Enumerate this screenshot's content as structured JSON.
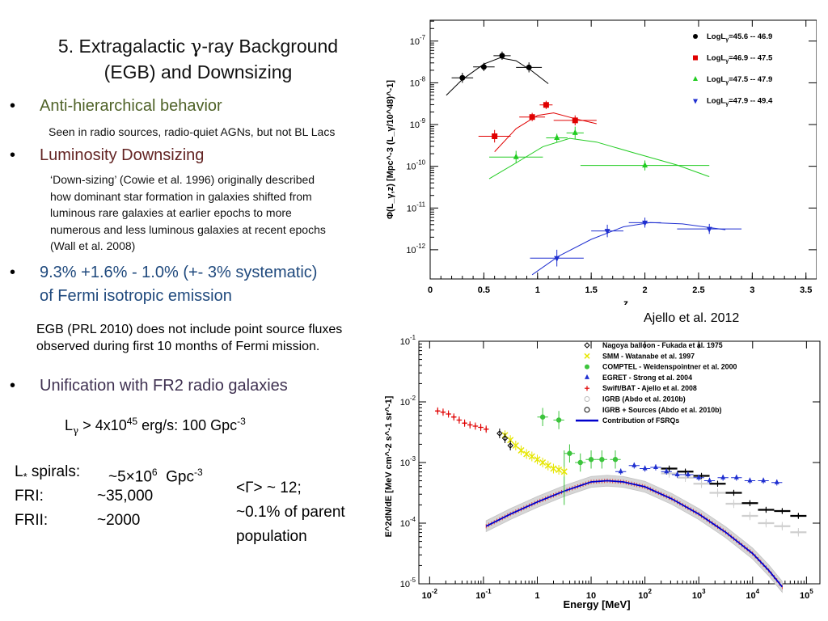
{
  "slide": {
    "title": {
      "line1_pre": "5. Extragalactic ",
      "line1_symbol": "γ",
      "line1_post": "-ray Background",
      "line2": "(EGB) and Downsizing"
    },
    "bullets": [
      {
        "label": "Anti-hierarchical behavior",
        "color": "#4f6228"
      },
      {
        "label": "Luminosity Downsizing",
        "color": "#632423"
      },
      {
        "label_line1": "9.3% +1.6% - 1.0% (+- 3% systematic)",
        "label_line2": "of Fermi isotropic emission",
        "color": "#1f497d"
      },
      {
        "label": "Unification with FR2 radio galaxies",
        "color": "#3f3151"
      }
    ],
    "sub_radio": "Seen in radio sources,  radio-quiet AGNs, but not BL Lacs",
    "sub_downsizing": [
      "‘Down-sizing’ (Cowie et al. 1996) originally described",
      "how dominant star formation in galaxies shifted from",
      "luminous rare galaxies at earlier epochs to more",
      "numerous and less luminous galaxies at recent epochs",
      "(Wall et al. 2008)"
    ],
    "egb_note": [
      "EGB (PRL 2010) does not include point source fluxes",
      "observed during first 10 months of Fermi mission."
    ],
    "lgamma": {
      "pre": "L",
      "sub": "γ",
      "mid": " > 4x10",
      "exp": "45",
      "post": " erg/s: 100 Gpc",
      "exp2": "-3"
    },
    "density_lines": [
      {
        "name": "L",
        "name_sub": "*",
        "name_rest": " spirals:",
        "value": "~5×10",
        "value_exp": "6",
        "unit": "  Gpc",
        "unit_exp": "-3"
      },
      {
        "name": "FRI:",
        "value": "~35,000"
      },
      {
        "name": "FRII:",
        "value": "~2000"
      }
    ],
    "gamma_text": {
      "line1": "<Γ> ~ 12;",
      "line2": "~0.1% of parent",
      "line3": "population"
    },
    "caption_top": "Ajello et al. 2012"
  },
  "chart_data": [
    {
      "type": "scatter",
      "xlabel": "z",
      "ylabel": "Φ(L_γ,z) [Mpc^-3 (L_γ/10^48)^-1]",
      "xlim": [
        0,
        3.6
      ],
      "ylim_log10": [
        -12.7,
        -6.5
      ],
      "y_scale": "log",
      "x_ticks": [
        "0",
        "0.5",
        "1",
        "1.5",
        "2",
        "2.5",
        "3",
        "3.5"
      ],
      "y_ticks": [
        {
          "base": "10",
          "exp": "-12",
          "v": -12
        },
        {
          "base": "10",
          "exp": "-11",
          "v": -11
        },
        {
          "base": "10",
          "exp": "-10",
          "v": -10
        },
        {
          "base": "10",
          "exp": "-9",
          "v": -9
        },
        {
          "base": "10",
          "exp": "-8",
          "v": -8
        },
        {
          "base": "10",
          "exp": "-7",
          "v": -7
        }
      ],
      "legend_position": "top-right",
      "series": [
        {
          "name": "LogL",
          "name_sub": "γ",
          "name_rest": "=45.6 -- 46.9",
          "color": "#000000",
          "marker": "circle",
          "points": [
            [
              0.3,
              -7.88,
              0.1,
              0.12
            ],
            [
              0.5,
              -7.62,
              0.1,
              0.1
            ],
            [
              0.67,
              -7.35,
              0.08,
              0.1
            ],
            [
              0.92,
              -7.63,
              0.12,
              0.12
            ]
          ],
          "curve": [
            [
              0.15,
              -8.3
            ],
            [
              0.3,
              -7.92
            ],
            [
              0.5,
              -7.55
            ],
            [
              0.65,
              -7.4
            ],
            [
              0.8,
              -7.47
            ],
            [
              0.95,
              -7.72
            ],
            [
              1.1,
              -8.02
            ]
          ]
        },
        {
          "name": "LogL",
          "name_sub": "γ",
          "name_rest": "=46.9 -- 47.5",
          "color": "#e00000",
          "marker": "square",
          "points": [
            [
              0.6,
              -9.28,
              0.15,
              0.15
            ],
            [
              0.95,
              -8.82,
              0.12,
              0.1
            ],
            [
              1.08,
              -8.53,
              0.06,
              0.1
            ],
            [
              1.35,
              -8.9,
              0.2,
              0.12
            ]
          ],
          "curve": [
            [
              0.6,
              -9.65
            ],
            [
              0.8,
              -9.1
            ],
            [
              1.0,
              -8.78
            ],
            [
              1.15,
              -8.72
            ],
            [
              1.35,
              -8.86
            ],
            [
              1.55,
              -8.98
            ]
          ]
        },
        {
          "name": "LogL",
          "name_sub": "γ",
          "name_rest": "=47.5 -- 47.9",
          "color": "#22cc22",
          "marker": "triangle-up",
          "points": [
            [
              0.8,
              -9.78,
              0.25,
              0.15
            ],
            [
              1.18,
              -9.32,
              0.1,
              0.1
            ],
            [
              1.35,
              -9.2,
              0.08,
              0.15
            ],
            [
              2.0,
              -9.98,
              0.6,
              0.12
            ]
          ],
          "curve": [
            [
              0.55,
              -10.3
            ],
            [
              0.8,
              -9.92
            ],
            [
              1.05,
              -9.53
            ],
            [
              1.3,
              -9.33
            ],
            [
              1.55,
              -9.42
            ],
            [
              1.9,
              -9.68
            ],
            [
              2.3,
              -9.97
            ],
            [
              2.6,
              -10.25
            ]
          ]
        },
        {
          "name": "LogL",
          "name_sub": "γ",
          "name_rest": "=47.9 -- 49.4",
          "color": "#1f2fd0",
          "marker": "triangle-down",
          "points": [
            [
              1.18,
              -12.2,
              0.25,
              0.2
            ],
            [
              1.65,
              -11.55,
              0.15,
              0.15
            ],
            [
              2.0,
              -11.35,
              0.15,
              0.12
            ],
            [
              2.6,
              -11.5,
              0.3,
              0.12
            ]
          ],
          "curve": [
            [
              0.95,
              -12.6
            ],
            [
              1.2,
              -12.15
            ],
            [
              1.5,
              -11.75
            ],
            [
              1.8,
              -11.45
            ],
            [
              2.05,
              -11.35
            ],
            [
              2.35,
              -11.38
            ],
            [
              2.75,
              -11.52
            ]
          ]
        }
      ]
    },
    {
      "type": "scatter",
      "xlabel": "Energy [MeV]",
      "ylabel": "E^2dN/dE [MeV cm^-2 s^-1 sr^-1]",
      "x_scale": "log",
      "y_scale": "log",
      "xlim_log10": [
        -2.2,
        5.25
      ],
      "ylim_log10": [
        -5,
        -1
      ],
      "x_ticks": [
        {
          "base": "10",
          "exp": "-2",
          "v": -2
        },
        {
          "base": "10",
          "exp": "-1",
          "v": -1
        },
        {
          "base": "1",
          "exp": "",
          "v": 0
        },
        {
          "base": "10",
          "exp": "",
          "v": 1
        },
        {
          "base": "10",
          "exp": "2",
          "v": 2
        },
        {
          "base": "10",
          "exp": "3",
          "v": 3
        },
        {
          "base": "10",
          "exp": "4",
          "v": 4
        },
        {
          "base": "10",
          "exp": "5",
          "v": 5
        }
      ],
      "y_ticks": [
        {
          "base": "10",
          "exp": "-5",
          "v": -5
        },
        {
          "base": "10",
          "exp": "-4",
          "v": -4
        },
        {
          "base": "10",
          "exp": "-3",
          "v": -3
        },
        {
          "base": "10",
          "exp": "-2",
          "v": -2
        },
        {
          "base": "10",
          "exp": "-1",
          "v": -1
        }
      ],
      "legend_position": "top-right",
      "legend": [
        {
          "label": "Nagoya balloon - Fukada et al. 1975",
          "marker": "diamond-open",
          "color": "#000000"
        },
        {
          "label": "SMM - Watanabe et al. 1997",
          "marker": "cross",
          "color": "#e6e600"
        },
        {
          "label": "COMPTEL - Weidenspointner et al. 2000",
          "marker": "circle",
          "color": "#3cc43c"
        },
        {
          "label": "EGRET - Strong et al. 2004",
          "marker": "triangle-up",
          "color": "#1f2fd0"
        },
        {
          "label": "Swift/BAT - Ajello et al. 2008",
          "marker": "plus",
          "color": "#e00000"
        },
        {
          "label": "IGRB (Abdo et al. 2010b)",
          "marker": "circle-open",
          "color": "#bbbbbb"
        },
        {
          "label": "IGRB + Sources (Abdo et al. 2010b)",
          "marker": "circle-open",
          "color": "#000000"
        },
        {
          "label": "Contribution of FSRQs",
          "marker": "line",
          "color": "#0000cc"
        }
      ],
      "swift_bat": [
        [
          -1.85,
          -2.15
        ],
        [
          -1.75,
          -2.17
        ],
        [
          -1.65,
          -2.2
        ],
        [
          -1.55,
          -2.25
        ],
        [
          -1.45,
          -2.3
        ],
        [
          -1.35,
          -2.35
        ],
        [
          -1.25,
          -2.38
        ],
        [
          -1.15,
          -2.4
        ],
        [
          -1.05,
          -2.42
        ],
        [
          -0.95,
          -2.45
        ]
      ],
      "nagoya": [
        [
          -0.7,
          -2.52
        ],
        [
          -0.6,
          -2.6
        ],
        [
          -0.5,
          -2.72
        ]
      ],
      "smm": [
        [
          -0.6,
          -2.55
        ],
        [
          -0.5,
          -2.63
        ],
        [
          -0.4,
          -2.72
        ],
        [
          -0.3,
          -2.8
        ],
        [
          -0.2,
          -2.86
        ],
        [
          -0.1,
          -2.9
        ],
        [
          0.0,
          -2.95
        ],
        [
          0.1,
          -3.0
        ],
        [
          0.2,
          -3.05
        ],
        [
          0.3,
          -3.1
        ],
        [
          0.4,
          -3.12
        ],
        [
          0.5,
          -3.15
        ]
      ],
      "comptel": [
        [
          0.1,
          -2.25
        ],
        [
          0.4,
          -2.3
        ],
        [
          0.6,
          -2.85
        ],
        [
          0.8,
          -3.0
        ],
        [
          1.0,
          -2.95
        ],
        [
          1.2,
          -2.95
        ],
        [
          1.45,
          -2.95
        ]
      ],
      "egret": [
        [
          1.55,
          -3.15
        ],
        [
          1.8,
          -3.05
        ],
        [
          2.0,
          -3.1
        ],
        [
          2.2,
          -3.08
        ],
        [
          2.4,
          -3.15
        ],
        [
          2.6,
          -3.2
        ],
        [
          2.8,
          -3.2
        ],
        [
          3.0,
          -3.25
        ],
        [
          3.2,
          -3.3
        ],
        [
          3.45,
          -3.25
        ],
        [
          3.7,
          -3.25
        ],
        [
          3.95,
          -3.3
        ],
        [
          4.2,
          -3.3
        ],
        [
          4.45,
          -3.33
        ]
      ],
      "igrb_sources": [
        [
          2.45,
          -3.1
        ],
        [
          2.75,
          -3.15
        ],
        [
          3.05,
          -3.22
        ],
        [
          3.35,
          -3.35
        ],
        [
          3.65,
          -3.5
        ],
        [
          3.95,
          -3.67
        ],
        [
          4.25,
          -3.78
        ],
        [
          4.55,
          -3.8
        ],
        [
          4.85,
          -3.88
        ]
      ],
      "igrb": [
        [
          2.45,
          -3.18
        ],
        [
          2.75,
          -3.25
        ],
        [
          3.05,
          -3.35
        ],
        [
          3.35,
          -3.5
        ],
        [
          3.65,
          -3.68
        ],
        [
          3.95,
          -3.88
        ],
        [
          4.25,
          -4.0
        ],
        [
          4.55,
          -4.05
        ],
        [
          4.85,
          -4.15
        ]
      ],
      "fsrq_curve": [
        [
          -0.95,
          -4.05
        ],
        [
          -0.5,
          -3.85
        ],
        [
          0,
          -3.65
        ],
        [
          0.5,
          -3.47
        ],
        [
          1.0,
          -3.32
        ],
        [
          1.3,
          -3.3
        ],
        [
          1.6,
          -3.32
        ],
        [
          2.0,
          -3.4
        ],
        [
          2.5,
          -3.6
        ],
        [
          3.0,
          -3.85
        ],
        [
          3.5,
          -4.15
        ],
        [
          4.0,
          -4.5
        ],
        [
          4.3,
          -4.78
        ],
        [
          4.55,
          -5.05
        ]
      ],
      "fsrq_band_dex": 0.09
    }
  ]
}
